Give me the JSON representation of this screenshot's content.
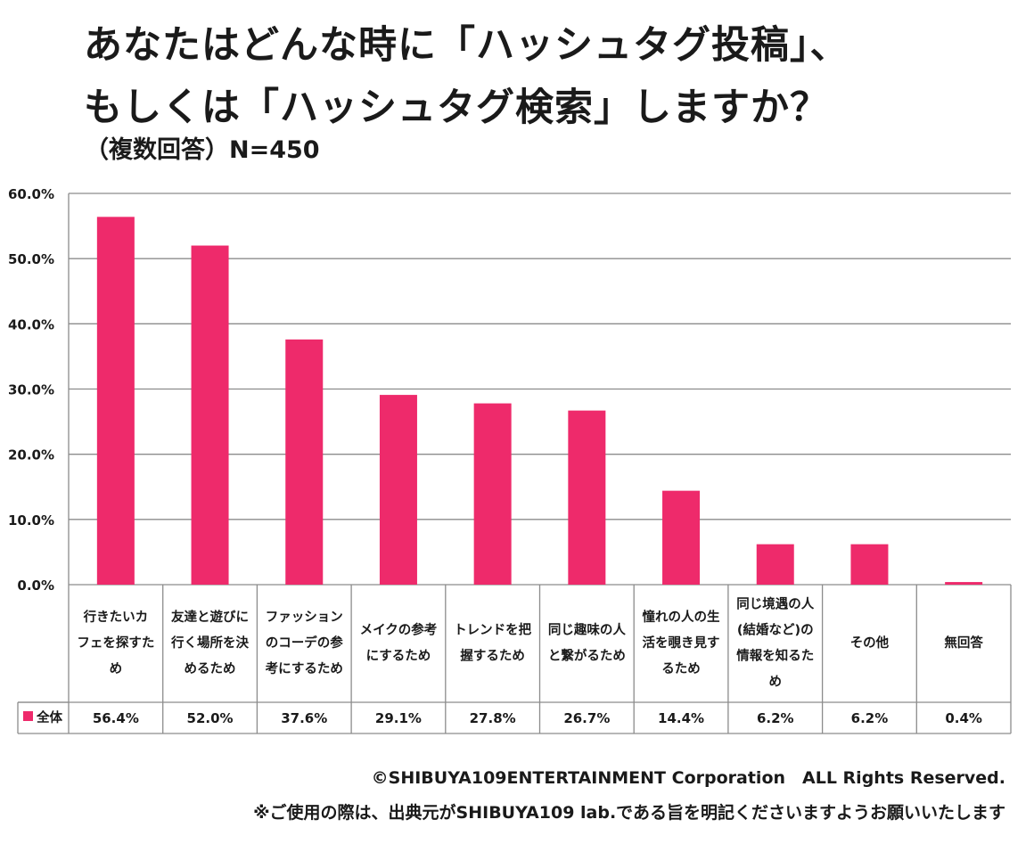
{
  "title_line1": "あなたはどんな時に「ハッシュタグ投稿」、",
  "title_line2": "もしくは「ハッシュタグ検索」しますか？",
  "subtitle": "（複数回答）N=450",
  "footer_copyright": "©SHIBUYA109ENTERTAINMENT Corporation　ALL Rights Reserved.",
  "footer_note": "※ご使用の際は、出典元がSHIBUYA109 lab.である旨を明記くださいますようお願いいたします",
  "colors": {
    "bar": "#ee2a6b",
    "grid": "#8c8c8c",
    "table_border": "#8c8c8c"
  },
  "chart_data": {
    "type": "bar",
    "ylim": [
      0,
      60
    ],
    "yticks": [
      "0.0%",
      "10.0%",
      "20.0%",
      "30.0%",
      "40.0%",
      "50.0%",
      "60.0%"
    ],
    "categories": [
      [
        "行きたいカ",
        "フェを探すた",
        "め"
      ],
      [
        "友達と遊びに",
        "行く場所を決",
        "めるため"
      ],
      [
        "ファッション",
        "のコーデの参",
        "考にするため"
      ],
      [
        "メイクの参考",
        "にするため"
      ],
      [
        "トレンドを把",
        "握するため"
      ],
      [
        "同じ趣味の人",
        "と繋がるため"
      ],
      [
        "憧れの人の生",
        "活を覗き見す",
        "るため"
      ],
      [
        "同じ境遇の人",
        "(結婚など)の",
        "情報を知るた",
        "め"
      ],
      [
        "その他"
      ],
      [
        "無回答"
      ]
    ],
    "series": [
      {
        "name": "全体",
        "values": [
          56.4,
          52.0,
          37.6,
          29.1,
          27.8,
          26.7,
          14.4,
          6.2,
          6.2,
          0.4
        ],
        "labels": [
          "56.4%",
          "52.0%",
          "37.6%",
          "29.1%",
          "27.8%",
          "26.7%",
          "14.4%",
          "6.2%",
          "6.2%",
          "0.4%"
        ]
      }
    ],
    "grid": true,
    "legend": "data-table"
  }
}
